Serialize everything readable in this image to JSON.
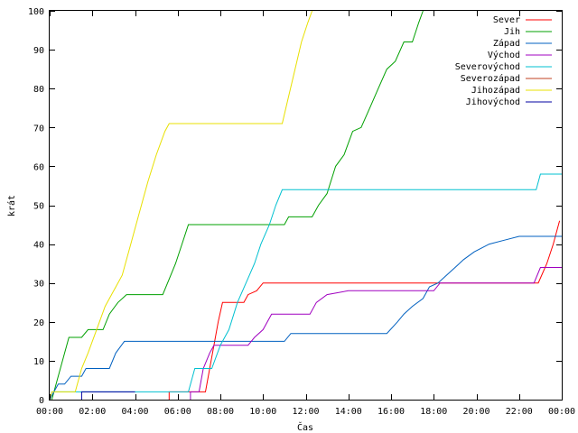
{
  "chart_data": {
    "type": "line",
    "title": "",
    "xlabel": "Čas",
    "ylabel": "krát",
    "xlim": [
      0,
      24
    ],
    "ylim": [
      0,
      100
    ],
    "grid": false,
    "legend_position": "top-right",
    "x_ticks": [
      {
        "value": 0,
        "label": "00:00"
      },
      {
        "value": 2,
        "label": "02:00"
      },
      {
        "value": 4,
        "label": "04:00"
      },
      {
        "value": 6,
        "label": "06:00"
      },
      {
        "value": 8,
        "label": "08:00"
      },
      {
        "value": 10,
        "label": "10:00"
      },
      {
        "value": 12,
        "label": "12:00"
      },
      {
        "value": 14,
        "label": "14:00"
      },
      {
        "value": 16,
        "label": "16:00"
      },
      {
        "value": 18,
        "label": "18:00"
      },
      {
        "value": 20,
        "label": "20:00"
      },
      {
        "value": 22,
        "label": "22:00"
      },
      {
        "value": 24,
        "label": "00:00"
      }
    ],
    "y_ticks": [
      0,
      10,
      20,
      30,
      40,
      50,
      60,
      70,
      80,
      90,
      100
    ],
    "series": [
      {
        "name": "Sever",
        "color": "#ff0000",
        "points": [
          [
            5.6,
            0
          ],
          [
            5.6,
            2
          ],
          [
            7.3,
            2
          ],
          [
            7.5,
            8
          ],
          [
            7.7,
            14
          ],
          [
            7.9,
            20
          ],
          [
            8.1,
            25
          ],
          [
            9.1,
            25
          ],
          [
            9.3,
            27
          ],
          [
            9.7,
            28
          ],
          [
            10.0,
            30
          ],
          [
            22.9,
            30
          ],
          [
            23.3,
            35
          ],
          [
            23.6,
            40
          ],
          [
            23.9,
            46
          ]
        ]
      },
      {
        "name": "Jih",
        "color": "#00a000",
        "points": [
          [
            0.1,
            0
          ],
          [
            0.3,
            4
          ],
          [
            0.6,
            10
          ],
          [
            0.9,
            16
          ],
          [
            1.5,
            16
          ],
          [
            1.8,
            18
          ],
          [
            2.5,
            18
          ],
          [
            2.8,
            22
          ],
          [
            3.2,
            25
          ],
          [
            3.6,
            27
          ],
          [
            5.3,
            27
          ],
          [
            5.6,
            31
          ],
          [
            5.9,
            35
          ],
          [
            6.2,
            40
          ],
          [
            6.5,
            45
          ],
          [
            11.0,
            45
          ],
          [
            11.2,
            47
          ],
          [
            12.3,
            47
          ],
          [
            12.6,
            50
          ],
          [
            13.0,
            53
          ],
          [
            13.4,
            60
          ],
          [
            13.8,
            63
          ],
          [
            14.2,
            69
          ],
          [
            14.6,
            70
          ],
          [
            15.0,
            75
          ],
          [
            15.4,
            80
          ],
          [
            15.8,
            85
          ],
          [
            16.2,
            87
          ],
          [
            16.6,
            92
          ],
          [
            17.0,
            92
          ],
          [
            17.3,
            97
          ],
          [
            17.5,
            100
          ]
        ]
      },
      {
        "name": "Západ",
        "color": "#0060c0",
        "points": [
          [
            0,
            0
          ],
          [
            0.2,
            2
          ],
          [
            0.4,
            4
          ],
          [
            0.7,
            4
          ],
          [
            1.0,
            6
          ],
          [
            1.5,
            6
          ],
          [
            1.7,
            8
          ],
          [
            2.8,
            8
          ],
          [
            3.1,
            12
          ],
          [
            3.5,
            15
          ],
          [
            11.0,
            15
          ],
          [
            11.3,
            17
          ],
          [
            15.8,
            17
          ],
          [
            16.3,
            20
          ],
          [
            16.6,
            22
          ],
          [
            17.0,
            24
          ],
          [
            17.5,
            26
          ],
          [
            17.8,
            29
          ],
          [
            18.2,
            30
          ],
          [
            18.6,
            32
          ],
          [
            19.0,
            34
          ],
          [
            19.4,
            36
          ],
          [
            19.9,
            38
          ],
          [
            20.6,
            40
          ],
          [
            21.3,
            41
          ],
          [
            22.0,
            42
          ],
          [
            24,
            42
          ]
        ]
      },
      {
        "name": "Východ",
        "color": "#a000c0",
        "points": [
          [
            6.6,
            0
          ],
          [
            6.6,
            2
          ],
          [
            7.0,
            2
          ],
          [
            7.2,
            8
          ],
          [
            7.5,
            12
          ],
          [
            7.7,
            14
          ],
          [
            9.3,
            14
          ],
          [
            9.6,
            16
          ],
          [
            10.0,
            18
          ],
          [
            10.4,
            22
          ],
          [
            12.2,
            22
          ],
          [
            12.5,
            25
          ],
          [
            13.0,
            27
          ],
          [
            14.0,
            28
          ],
          [
            18.0,
            28
          ],
          [
            18.3,
            30
          ],
          [
            22.7,
            30
          ],
          [
            23.0,
            34
          ],
          [
            24,
            34
          ]
        ]
      },
      {
        "name": "Severovýchod",
        "color": "#00c0d0",
        "points": [
          [
            0,
            0
          ],
          [
            0.1,
            2
          ],
          [
            6.5,
            2
          ],
          [
            6.8,
            8
          ],
          [
            7.6,
            8
          ],
          [
            8.0,
            14
          ],
          [
            8.4,
            18
          ],
          [
            8.8,
            25
          ],
          [
            9.2,
            30
          ],
          [
            9.6,
            35
          ],
          [
            9.9,
            40
          ],
          [
            10.3,
            45
          ],
          [
            10.6,
            50
          ],
          [
            10.9,
            54
          ],
          [
            22.8,
            54
          ],
          [
            23.0,
            58
          ],
          [
            24,
            58
          ]
        ]
      },
      {
        "name": "Severozápad",
        "color": "#c04020",
        "points": []
      },
      {
        "name": "Jihozápad",
        "color": "#e8e000",
        "points": [
          [
            0,
            0
          ],
          [
            0.1,
            2
          ],
          [
            1.2,
            2
          ],
          [
            1.5,
            8
          ],
          [
            1.8,
            12
          ],
          [
            2.2,
            18
          ],
          [
            2.6,
            24
          ],
          [
            3.0,
            28
          ],
          [
            3.4,
            32
          ],
          [
            3.8,
            40
          ],
          [
            4.2,
            48
          ],
          [
            4.6,
            56
          ],
          [
            5.0,
            63
          ],
          [
            5.4,
            69
          ],
          [
            5.6,
            71
          ],
          [
            10.9,
            71
          ],
          [
            11.2,
            78
          ],
          [
            11.5,
            85
          ],
          [
            11.8,
            92
          ],
          [
            12.1,
            97
          ],
          [
            12.3,
            100
          ]
        ]
      },
      {
        "name": "Jihovýchod",
        "color": "#0000a0",
        "points": [
          [
            1.5,
            0
          ],
          [
            1.5,
            2
          ],
          [
            4.0,
            2
          ]
        ]
      }
    ]
  }
}
